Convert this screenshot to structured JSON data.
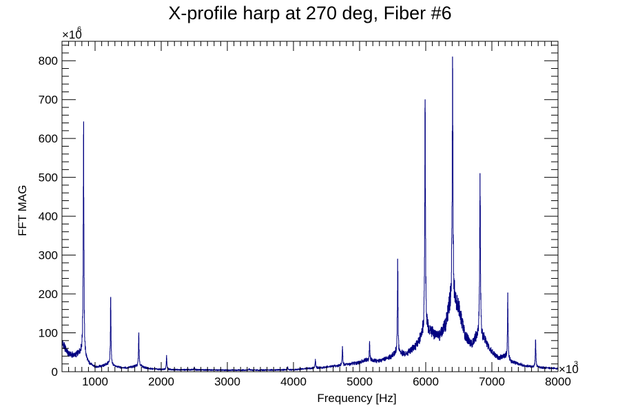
{
  "chart_data": {
    "type": "line",
    "title": "X-profile harp at 270 deg, Fiber #6",
    "xlabel": "Frequency [Hz]",
    "ylabel": "FFT MAG",
    "x_exponent_label": "×10",
    "x_exponent_power": "3",
    "y_exponent_label": "×10",
    "y_exponent_power": "6",
    "xlim": [
      500,
      8000
    ],
    "ylim": [
      0,
      850
    ],
    "x_ticks": [
      "1000",
      "2000",
      "3000",
      "4000",
      "5000",
      "6000",
      "7000",
      "8000"
    ],
    "y_ticks": [
      "0",
      "100",
      "200",
      "300",
      "400",
      "500",
      "600",
      "700",
      "800"
    ],
    "line_color": "#000080",
    "grid": false,
    "series": [
      {
        "baseline": [
          [
            500,
            75
          ],
          [
            600,
            45
          ],
          [
            700,
            42
          ],
          [
            790,
            50
          ],
          [
            900,
            22
          ],
          [
            1000,
            12
          ],
          [
            1100,
            14
          ],
          [
            1200,
            20
          ],
          [
            1300,
            14
          ],
          [
            1400,
            10
          ],
          [
            1500,
            10
          ],
          [
            1600,
            14
          ],
          [
            1700,
            14
          ],
          [
            1800,
            8
          ],
          [
            2000,
            6
          ],
          [
            2200,
            5
          ],
          [
            2500,
            5
          ],
          [
            3000,
            4
          ],
          [
            3500,
            4
          ],
          [
            4000,
            5
          ],
          [
            4200,
            8
          ],
          [
            4400,
            10
          ],
          [
            4600,
            14
          ],
          [
            4800,
            18
          ],
          [
            5000,
            24
          ],
          [
            5100,
            30
          ],
          [
            5300,
            28
          ],
          [
            5450,
            36
          ],
          [
            5550,
            48
          ],
          [
            5700,
            45
          ],
          [
            5850,
            65
          ],
          [
            6000,
            110
          ],
          [
            6100,
            100
          ],
          [
            6200,
            90
          ],
          [
            6300,
            120
          ],
          [
            6400,
            200
          ],
          [
            6500,
            160
          ],
          [
            6600,
            90
          ],
          [
            6700,
            70
          ],
          [
            6800,
            100
          ],
          [
            6900,
            80
          ],
          [
            7000,
            50
          ],
          [
            7100,
            35
          ],
          [
            7200,
            40
          ],
          [
            7300,
            25
          ],
          [
            7500,
            15
          ],
          [
            7650,
            12
          ],
          [
            7800,
            10
          ],
          [
            8000,
            8
          ]
        ],
        "peaks": [
          {
            "x": 825,
            "y": 610
          },
          {
            "x": 1235,
            "y": 190
          },
          {
            "x": 1660,
            "y": 100
          },
          {
            "x": 2080,
            "y": 42
          },
          {
            "x": 2500,
            "y": 12
          },
          {
            "x": 3330,
            "y": 8
          },
          {
            "x": 3910,
            "y": 12
          },
          {
            "x": 4330,
            "y": 32
          },
          {
            "x": 4740,
            "y": 65
          },
          {
            "x": 5150,
            "y": 78
          },
          {
            "x": 5575,
            "y": 290
          },
          {
            "x": 5990,
            "y": 700
          },
          {
            "x": 6405,
            "y": 810
          },
          {
            "x": 6820,
            "y": 510
          },
          {
            "x": 7240,
            "y": 203
          },
          {
            "x": 7660,
            "y": 82
          }
        ]
      }
    ]
  }
}
